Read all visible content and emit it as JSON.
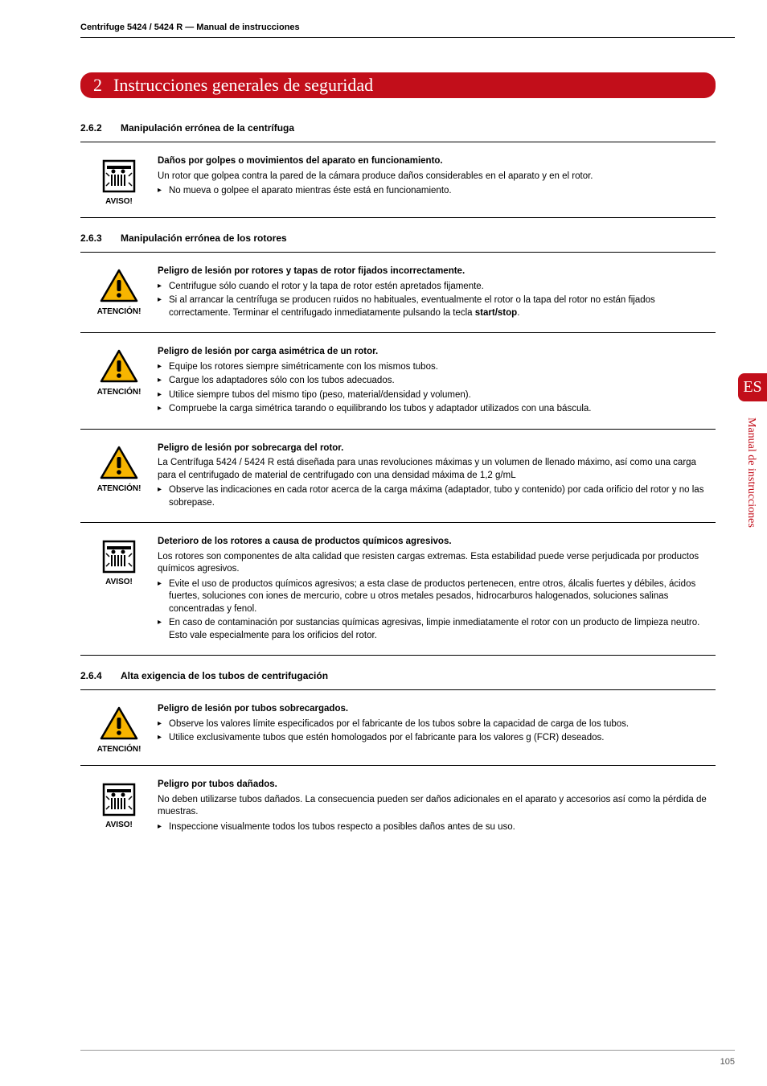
{
  "header": {
    "text": "Centrifuge 5424 / 5424 R  —  Manual de instrucciones"
  },
  "chapter": {
    "number": "2",
    "title": "Instrucciones generales de seguridad"
  },
  "side": {
    "lang": "ES",
    "label": "Manual de instrucciones"
  },
  "page_number": "105",
  "icon_labels": {
    "aviso": "AVISO!",
    "atencion": "ATENCIÓN!"
  },
  "icon_colors": {
    "aviso_border": "#000000",
    "aviso_fill": "#ffffff",
    "atencion_border": "#000000",
    "atencion_fill": "#f7b500"
  },
  "sections": [
    {
      "number": "2.6.2",
      "heading": "Manipulación errónea de la centrífuga",
      "blocks": [
        {
          "icon": "aviso",
          "title": "Daños por golpes o movimientos del aparato en funcionamiento.",
          "paragraphs": [
            "Un rotor que golpea contra la pared de la cámara produce daños considerables en el aparato y en el rotor."
          ],
          "bullets": [
            "No mueva o golpee el aparato mientras éste está en funcionamiento."
          ]
        }
      ]
    },
    {
      "number": "2.6.3",
      "heading": "Manipulación errónea de los rotores",
      "blocks": [
        {
          "icon": "atencion",
          "title": "Peligro de lesión por rotores y tapas de rotor fijados incorrectamente.",
          "paragraphs": [],
          "bullets": [
            "Centrifugue sólo cuando el rotor y la tapa de rotor estén apretados fijamente.",
            "Si al arrancar la centrífuga se producen ruidos no habituales, eventualmente el rotor o la tapa del rotor no están fijados correctamente. Terminar el centrifugado inmediatamente pulsando la tecla <b>start/stop</b>."
          ]
        },
        {
          "icon": "atencion",
          "title": "Peligro de lesión por carga asimétrica de un rotor.",
          "paragraphs": [],
          "bullets": [
            "Equipe los rotores siempre simétricamente con los mismos tubos.",
            "Cargue los adaptadores sólo con los tubos adecuados.",
            "Utilice siempre tubos del mismo tipo (peso, material/densidad y volumen).",
            "Compruebe la carga simétrica tarando o equilibrando los tubos y adaptador utilizados con una báscula."
          ]
        },
        {
          "icon": "atencion",
          "title": "Peligro de lesión por sobrecarga del rotor.",
          "paragraphs": [
            "La Centrífuga 5424 / 5424 R está diseñada para unas revoluciones máximas y un volumen de llenado máximo, así como una carga para el centrifugado de material de centrifugado con una densidad máxima de 1,2 g/mL"
          ],
          "bullets": [
            "Observe las indicaciones en cada rotor acerca de la carga máxima (adaptador, tubo y contenido) por cada orificio del rotor y no las sobrepase."
          ]
        },
        {
          "icon": "aviso",
          "title": "Deterioro de los rotores a causa de productos químicos agresivos.",
          "paragraphs": [
            "Los rotores son componentes de alta calidad que resisten cargas extremas. Esta estabilidad puede verse perjudicada por productos químicos agresivos."
          ],
          "bullets": [
            "Evite el uso de productos químicos agresivos; a esta clase de productos pertenecen, entre otros, álcalis fuertes y débiles, ácidos fuertes, soluciones con iones de mercurio, cobre u otros metales pesados, hidrocarburos halogenados, soluciones salinas concentradas y fenol.",
            "En caso de contaminación por sustancias químicas agresivas, limpie inmediatamente el rotor con un producto de limpieza neutro. Esto vale especialmente para los orificios del rotor."
          ]
        }
      ]
    },
    {
      "number": "2.6.4",
      "heading": "Alta exigencia de los tubos de centrifugación",
      "blocks": [
        {
          "icon": "atencion",
          "title": "Peligro de lesión por tubos sobrecargados.",
          "paragraphs": [],
          "bullets": [
            "Observe los valores límite especificados por el fabricante de los tubos sobre la capacidad de carga de los tubos.",
            "Utilice exclusivamente tubos que estén homologados por el fabricante para los valores g (FCR) deseados."
          ]
        },
        {
          "icon": "aviso",
          "title": "Peligro por tubos dañados.",
          "paragraphs": [
            "No deben utilizarse tubos dañados. La consecuencia pueden ser daños adicionales en el aparato y accesorios así como la pérdida de muestras."
          ],
          "bullets": [
            "Inspeccione visualmente todos los tubos respecto a posibles daños antes de su uso."
          ]
        }
      ]
    }
  ]
}
